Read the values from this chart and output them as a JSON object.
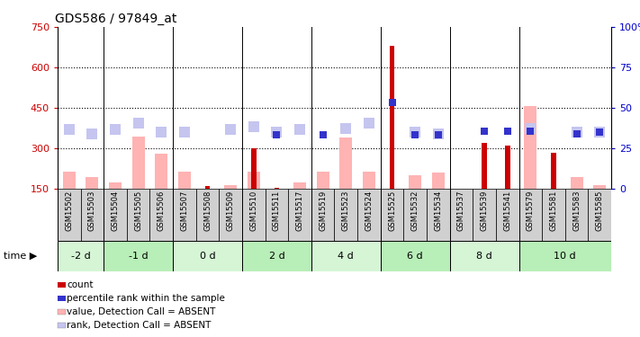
{
  "title": "GDS586 / 97849_at",
  "samples": [
    "GSM15502",
    "GSM15503",
    "GSM15504",
    "GSM15505",
    "GSM15506",
    "GSM15507",
    "GSM15508",
    "GSM15509",
    "GSM15510",
    "GSM15511",
    "GSM15517",
    "GSM15519",
    "GSM15523",
    "GSM15524",
    "GSM15525",
    "GSM15532",
    "GSM15534",
    "GSM15537",
    "GSM15539",
    "GSM15541",
    "GSM15579",
    "GSM15581",
    "GSM15583",
    "GSM15585"
  ],
  "count_values": [
    null,
    null,
    null,
    null,
    null,
    null,
    160,
    null,
    300,
    155,
    null,
    null,
    null,
    null,
    680,
    null,
    null,
    null,
    320,
    310,
    null,
    285,
    null,
    null
  ],
  "value_absent": [
    215,
    195,
    175,
    345,
    280,
    215,
    null,
    165,
    215,
    null,
    175,
    215,
    340,
    215,
    null,
    200,
    210,
    null,
    null,
    null,
    455,
    null,
    195,
    165
  ],
  "rank_absent": [
    370,
    355,
    370,
    395,
    360,
    360,
    null,
    370,
    380,
    360,
    370,
    null,
    375,
    395,
    null,
    360,
    355,
    null,
    null,
    null,
    375,
    null,
    360,
    360
  ],
  "percentile_rank": [
    null,
    null,
    null,
    null,
    null,
    null,
    null,
    null,
    null,
    350,
    null,
    350,
    null,
    null,
    470,
    350,
    350,
    null,
    365,
    365,
    365,
    null,
    355,
    360
  ],
  "time_groups": [
    {
      "label": "-2 d",
      "start": 0,
      "end": 2,
      "color": "#d5f5d5"
    },
    {
      "label": "-1 d",
      "start": 2,
      "end": 5,
      "color": "#b8eeb8"
    },
    {
      "label": "0 d",
      "start": 5,
      "end": 8,
      "color": "#d5f5d5"
    },
    {
      "label": "2 d",
      "start": 8,
      "end": 11,
      "color": "#b8eeb8"
    },
    {
      "label": "4 d",
      "start": 11,
      "end": 14,
      "color": "#d5f5d5"
    },
    {
      "label": "6 d",
      "start": 14,
      "end": 17,
      "color": "#b8eeb8"
    },
    {
      "label": "8 d",
      "start": 17,
      "end": 20,
      "color": "#d5f5d5"
    },
    {
      "label": "10 d",
      "start": 20,
      "end": 24,
      "color": "#b8eeb8"
    }
  ],
  "group_boundaries": [
    0,
    2,
    5,
    8,
    11,
    14,
    17,
    20,
    24
  ],
  "ylim_left": [
    150,
    750
  ],
  "ylim_right": [
    0,
    100
  ],
  "yticks_left": [
    150,
    300,
    450,
    600,
    750
  ],
  "yticks_right": [
    0,
    25,
    50,
    75,
    100
  ],
  "bar_color": "#cc0000",
  "absent_value_color": "#ffb3b3",
  "absent_rank_color": "#c5c5f0",
  "percentile_color": "#3333cc",
  "sample_cell_color": "#cccccc",
  "legend": [
    {
      "label": "count",
      "color": "#cc0000"
    },
    {
      "label": "percentile rank within the sample",
      "color": "#3333cc"
    },
    {
      "label": "value, Detection Call = ABSENT",
      "color": "#ffb3b3"
    },
    {
      "label": "rank, Detection Call = ABSENT",
      "color": "#c5c5f0"
    }
  ]
}
